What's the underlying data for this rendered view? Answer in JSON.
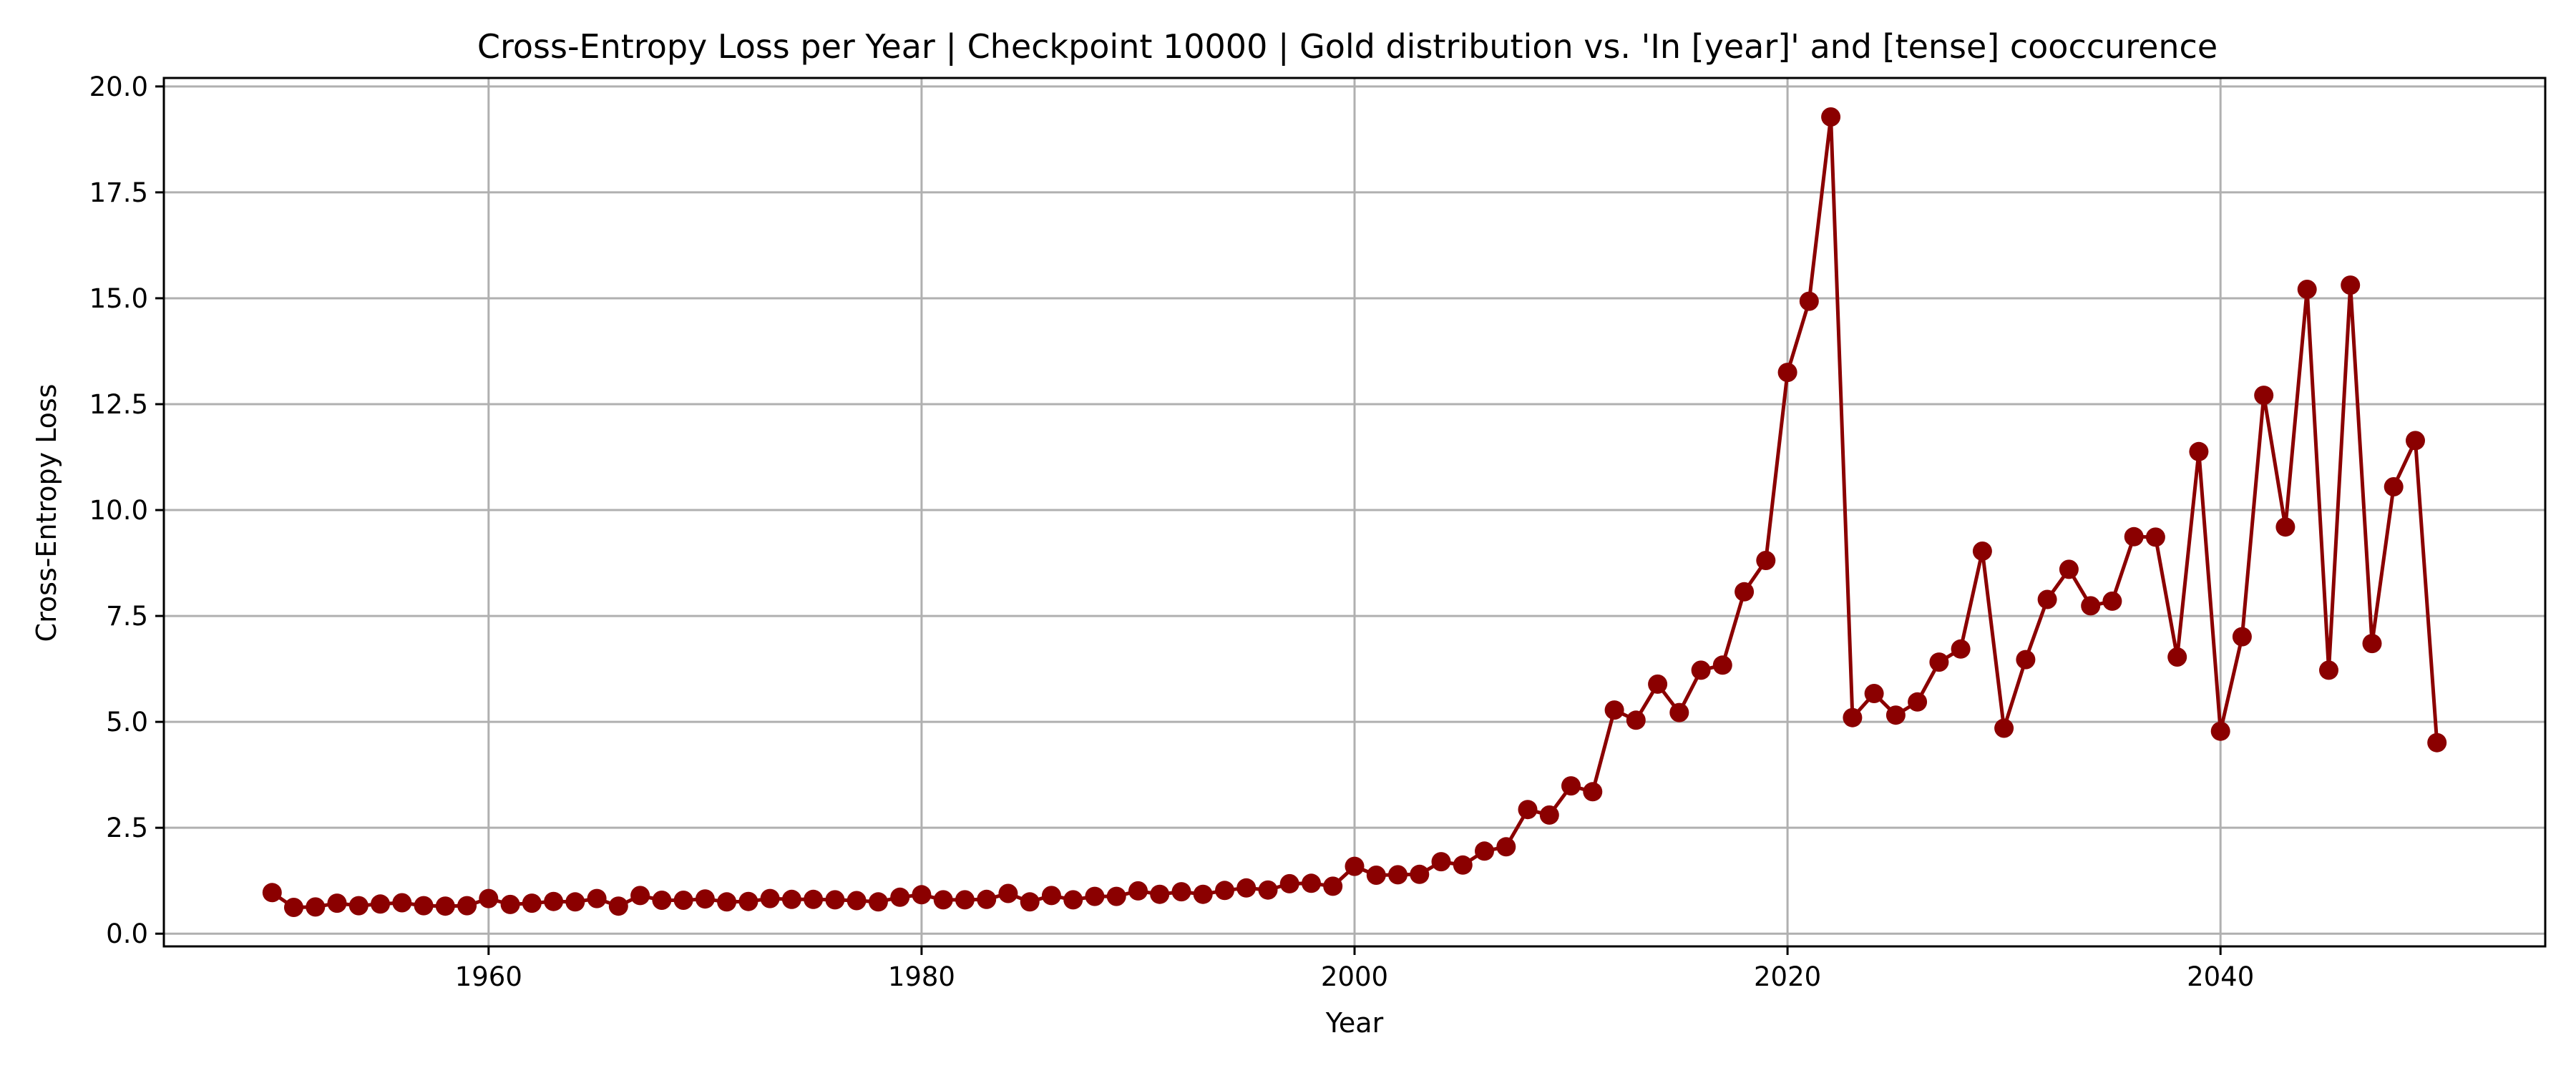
{
  "chart_data": {
    "type": "line",
    "title": "Cross-Entropy Loss per Year | Checkpoint 10000 | Gold distribution vs. 'In [year]' and [tense] cooccurence",
    "xlabel": "Year",
    "ylabel": "Cross-Entropy Loss",
    "xlim": [
      1945,
      2055
    ],
    "ylim": [
      -0.3,
      20.2
    ],
    "xticks": [
      1960,
      1980,
      2000,
      2020,
      2040
    ],
    "xtick_labels": [
      "1960",
      "1980",
      "2000",
      "2020",
      "2040"
    ],
    "yticks": [
      0,
      2.5,
      5,
      7.5,
      10,
      12.5,
      15,
      17.5,
      20
    ],
    "ytick_labels": [
      "0.0",
      "2.5",
      "5.0",
      "7.5",
      "10.0",
      "12.5",
      "15.0",
      "17.5",
      "20.0"
    ],
    "grid": true,
    "color": "#8b0000",
    "marker": "circle",
    "series": [
      {
        "x": [
          1950,
          1951,
          1952,
          1953,
          1954,
          1955,
          1956,
          1957,
          1958,
          1959,
          1960,
          1961,
          1962,
          1963,
          1964,
          1965,
          1966,
          1967,
          1968,
          1969,
          1970,
          1971,
          1972,
          1973,
          1974,
          1975,
          1976,
          1977,
          1978,
          1979,
          1980,
          1981,
          1982,
          1983,
          1984,
          1985,
          1986,
          1987,
          1988,
          1989,
          1990,
          1991,
          1992,
          1993,
          1994,
          1995,
          1996,
          1997,
          1998,
          1999,
          2000,
          2001,
          2002,
          2003,
          2004,
          2005,
          2006,
          2007,
          2008,
          2009,
          2010,
          2011,
          2012,
          2013,
          2014,
          2015,
          2016,
          2017,
          2018,
          2019,
          2020,
          2021,
          2022,
          2023,
          2024,
          2025,
          2026,
          2027,
          2028,
          2029,
          2030,
          2031,
          2032,
          2033,
          2034,
          2035,
          2036,
          2037,
          2038,
          2039,
          2040,
          2041,
          2042,
          2043,
          2044,
          2045,
          2046,
          2047,
          2048,
          2049,
          2050
        ],
        "y": [
          0.97,
          0.62,
          0.63,
          0.72,
          0.66,
          0.7,
          0.73,
          0.66,
          0.65,
          0.66,
          0.83,
          0.69,
          0.72,
          0.76,
          0.75,
          0.83,
          0.65,
          0.9,
          0.79,
          0.79,
          0.82,
          0.75,
          0.76,
          0.83,
          0.81,
          0.81,
          0.8,
          0.78,
          0.75,
          0.86,
          0.92,
          0.8,
          0.8,
          0.81,
          0.95,
          0.75,
          0.9,
          0.8,
          0.88,
          0.88,
          1.01,
          0.93,
          0.99,
          0.93,
          1.02,
          1.08,
          1.03,
          1.18,
          1.19,
          1.12,
          1.59,
          1.38,
          1.39,
          1.4,
          1.7,
          1.62,
          1.95,
          2.05,
          2.93,
          2.8,
          3.49,
          3.35,
          5.28,
          5.04,
          5.89,
          5.22,
          6.22,
          6.34,
          8.07,
          8.81,
          13.25,
          14.93,
          19.28,
          5.1,
          5.67,
          5.16,
          5.47,
          6.41,
          6.72,
          9.03,
          4.85,
          6.47,
          7.89,
          8.6,
          7.74,
          7.85,
          9.37,
          9.36,
          6.53,
          11.38,
          4.78,
          7.01,
          12.71,
          9.6,
          15.21,
          6.22,
          15.31,
          6.85,
          10.55,
          11.64,
          4.51
        ]
      }
    ]
  }
}
